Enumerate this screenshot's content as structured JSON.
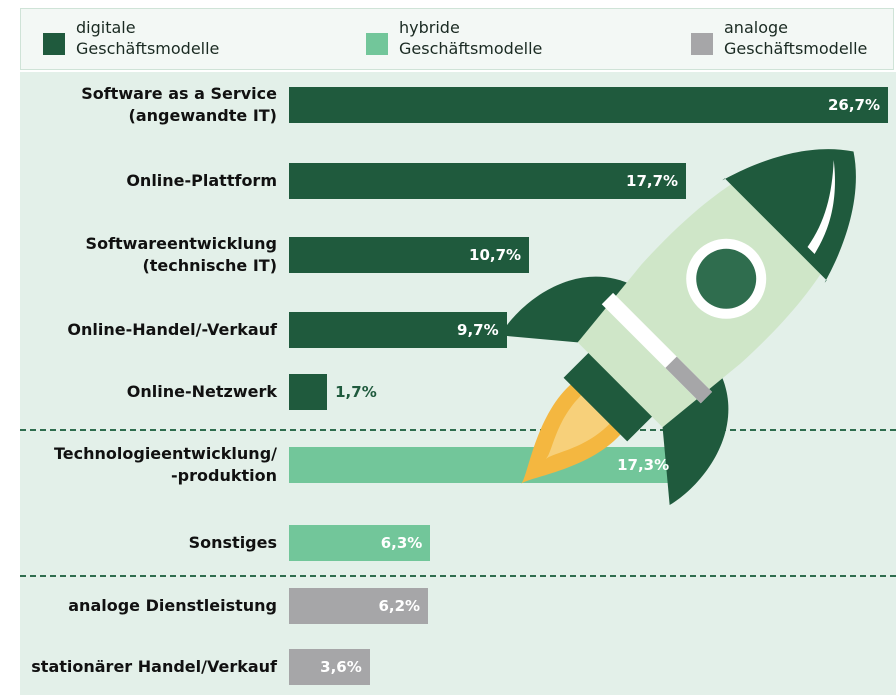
{
  "chart_data": {
    "type": "bar",
    "categories": [
      "Software as a Service\n(angewandte IT)",
      "Online-Plattform",
      "Softwareentwicklung\n(technische IT)",
      "Online-Handel/-Verkauf",
      "Online-Netzwerk",
      "Technologieentwicklung/\n-produktion",
      "Sonstiges",
      "analoge Dienstleistung",
      "stationärer Handel/Verkauf"
    ],
    "series": [
      {
        "name": "digitale\nGeschäftsmodelle",
        "color": "#1f5a3d",
        "values": [
          26.7,
          17.7,
          10.7,
          9.7,
          1.7,
          null,
          null,
          null,
          null
        ],
        "value_labels": [
          "26,7%",
          "17,7%",
          "10,7%",
          "9,7%",
          "1,7%",
          null,
          null,
          null,
          null
        ]
      },
      {
        "name": "hybride\nGeschäftsmodelle",
        "color": "#72c69a",
        "values": [
          null,
          null,
          null,
          null,
          null,
          17.3,
          6.3,
          null,
          null
        ],
        "value_labels": [
          null,
          null,
          null,
          null,
          null,
          "17,3%",
          "6,3%",
          null,
          null
        ]
      },
      {
        "name": "analoge\nGeschäftsmodelle",
        "color": "#a6a6a8",
        "values": [
          null,
          null,
          null,
          null,
          null,
          null,
          null,
          6.2,
          3.6
        ],
        "value_labels": [
          null,
          null,
          null,
          null,
          null,
          null,
          null,
          "6,2%",
          "3,6%"
        ]
      }
    ]
  }
}
